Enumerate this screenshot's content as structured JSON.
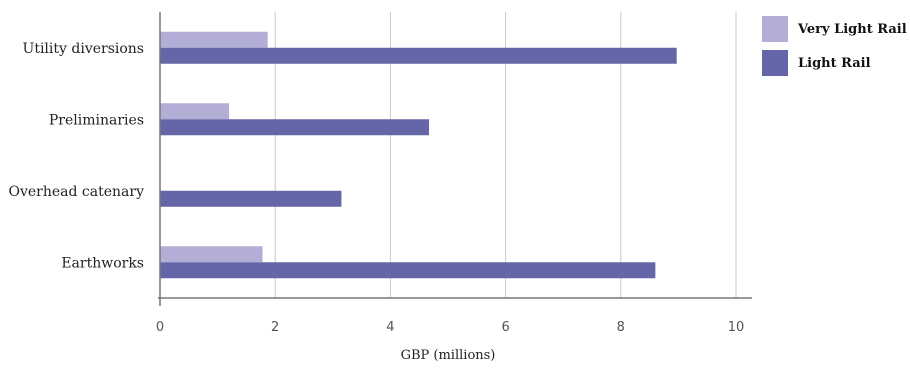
{
  "chart_data": {
    "type": "bar",
    "orientation": "horizontal",
    "categories": [
      "Utility diversions",
      "Preliminaries",
      "Overhead catenary",
      "Earthworks"
    ],
    "series": [
      {
        "name": "Very Light Rail",
        "color": "#b3aed6",
        "values": [
          1.87,
          1.2,
          0,
          1.78
        ]
      },
      {
        "name": "Light Rail",
        "color": "#6466a8",
        "values": [
          8.97,
          4.67,
          3.15,
          8.6
        ]
      }
    ],
    "xlabel": "GBP (millions)",
    "xlim": [
      0,
      10
    ],
    "xticks": [
      0,
      2,
      4,
      6,
      8,
      10
    ],
    "grid": true,
    "legend": "top-right"
  }
}
